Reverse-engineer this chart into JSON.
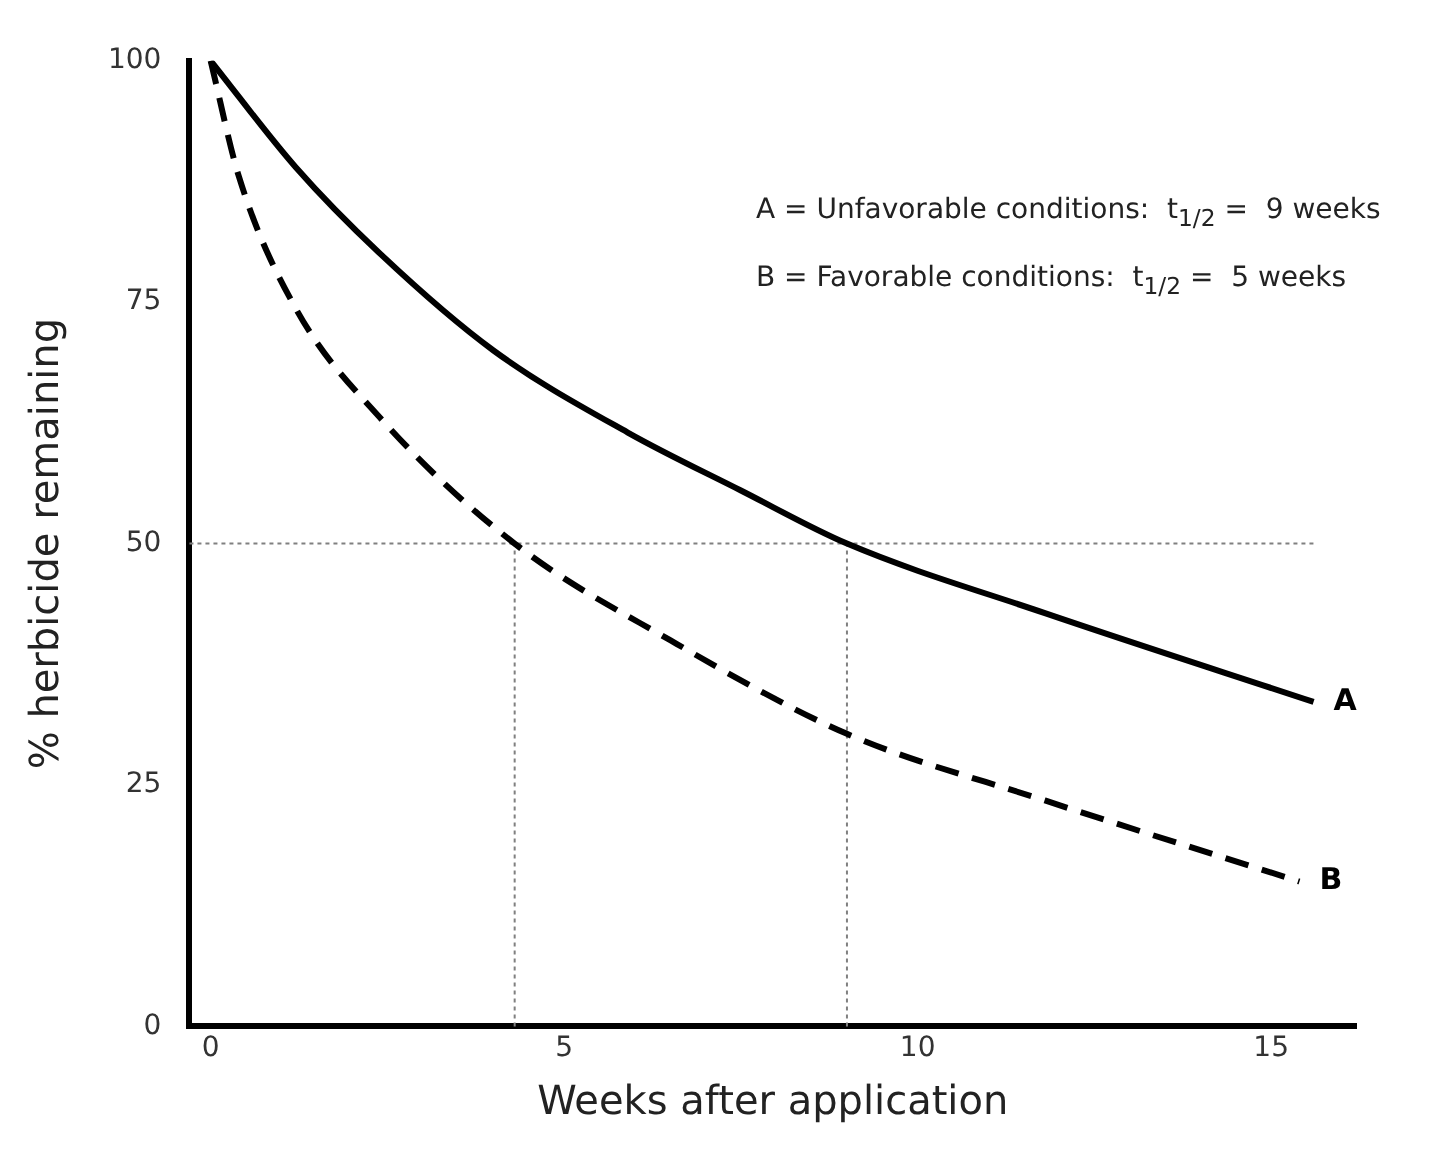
{
  "chart_data": {
    "type": "line",
    "xlabel": "Weeks after application",
    "ylabel": "% herbicide remaining",
    "annotations": [
      "A = Unfavorable conditions:  t$_{1/2}$ =  9 weeks",
      "B = Favorable conditions:  t$_{1/2}$ =  5 weeks"
    ],
    "series": [
      {
        "name": "A",
        "color": "#000000",
        "line_style": "solid",
        "x": [
          0,
          1.2,
          2.4,
          4.0,
          5.9,
          7.5,
          9.0,
          11.8,
          15.6
        ],
        "values": [
          100,
          89,
          80,
          70,
          61.5,
          55.5,
          50,
          42.8,
          33.6
        ]
      },
      {
        "name": "B",
        "color": "#000000",
        "line_style": "dashed",
        "x": [
          0,
          0.4,
          1.2,
          2.4,
          4.3,
          6.5,
          9.0,
          11.8,
          15.4
        ],
        "values": [
          100,
          88,
          74.4,
          63,
          50,
          40,
          30.3,
          23.4,
          15
        ]
      }
    ],
    "xlim": [
      -0.3,
      16.2
    ],
    "xticks": [
      0,
      5,
      10,
      15
    ],
    "ylim": [
      0,
      100
    ],
    "yticks": [
      0,
      25,
      50,
      75,
      100
    ],
    "ref_lines": [
      {
        "axis": "y",
        "value": 50,
        "line_style": "dotted",
        "color": "#808080"
      },
      {
        "axis": "x",
        "value": 4.3,
        "line_style": "dotted",
        "color": "#808080"
      },
      {
        "axis": "x",
        "value": 9,
        "line_style": "dotted",
        "color": "#808080"
      }
    ],
    "grid": false,
    "legend": false,
    "marker": "none"
  }
}
